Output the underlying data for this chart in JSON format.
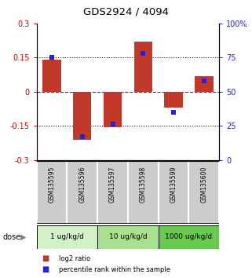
{
  "title": "GDS2924 / 4094",
  "samples": [
    "GSM135595",
    "GSM135596",
    "GSM135597",
    "GSM135598",
    "GSM135599",
    "GSM135600"
  ],
  "log2_ratio": [
    0.14,
    -0.21,
    -0.155,
    0.22,
    -0.07,
    0.07
  ],
  "percentile_rank": [
    75,
    17,
    26,
    78,
    35,
    58
  ],
  "ylim_left": [
    -0.3,
    0.3
  ],
  "ylim_right": [
    0,
    100
  ],
  "bar_color": "#c0392b",
  "point_color": "#2222dd",
  "yticks_left": [
    -0.3,
    -0.15,
    0,
    0.15,
    0.3
  ],
  "ytick_labels_left": [
    "-0.3",
    "-0.15",
    "0",
    "0.15",
    "0.3"
  ],
  "yticks_right": [
    0,
    25,
    50,
    75,
    100
  ],
  "ytick_labels_right": [
    "0",
    "25",
    "50",
    "75",
    "100%"
  ],
  "hlines": [
    -0.15,
    0.0,
    0.15
  ],
  "hline_styles": [
    "dotted",
    "dashed",
    "dotted"
  ],
  "hline_colors": [
    "black",
    "#cc0000",
    "black"
  ],
  "dose_groups": [
    {
      "label": "1 ug/kg/d",
      "samples": [
        0,
        1
      ],
      "color": "#d4f0c8"
    },
    {
      "label": "10 ug/kg/d",
      "samples": [
        2,
        3
      ],
      "color": "#a8e090"
    },
    {
      "label": "1000 ug/kg/d",
      "samples": [
        4,
        5
      ],
      "color": "#68c850"
    }
  ],
  "dose_label": "dose",
  "legend_red_label": "log2 ratio",
  "legend_blue_label": "percentile rank within the sample",
  "bar_width": 0.6,
  "sample_box_color": "#cccccc",
  "background_color": "#ffffff"
}
